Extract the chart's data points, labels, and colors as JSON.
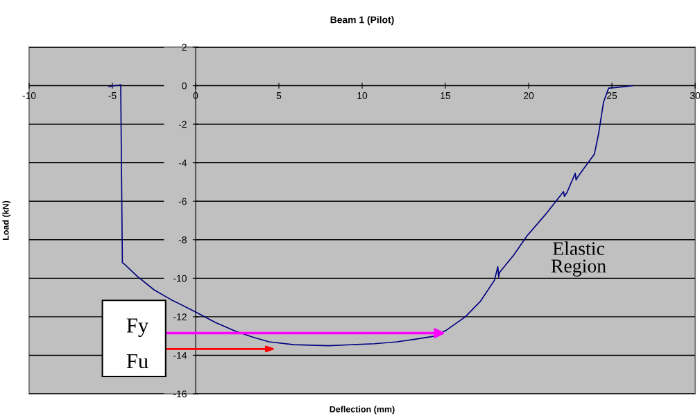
{
  "chart_data": {
    "type": "line",
    "title": "Beam 1 (Pilot)",
    "xlabel": "Deflection (mm)",
    "ylabel": "Load (kN)",
    "xlim": [
      -10,
      30
    ],
    "xticks": [
      -10,
      -5,
      0,
      5,
      10,
      15,
      20,
      25,
      30
    ],
    "ylim": [
      -16,
      2
    ],
    "yticks": [
      -16,
      -14,
      -12,
      -10,
      -8,
      -6,
      -4,
      -2,
      0,
      2
    ],
    "grid": "y",
    "legend": false,
    "marker": "none",
    "line_style": "solid",
    "series": [
      {
        "color": "#000080",
        "x": [
          -5.2,
          -4.9,
          -4.6,
          -4.5,
          -4.45,
          -4.4,
          -4.3,
          -3.5,
          -2.5,
          -1.5,
          0,
          1.2,
          2.4,
          3.4,
          4.4,
          5.9,
          8,
          10.75,
          12.1,
          13.3,
          14.4,
          15.05,
          16.2,
          17.1,
          17.95,
          18.15,
          18.2,
          18.25,
          19.1,
          19.9,
          21.0,
          22.1,
          22.15,
          22.3,
          22.8,
          22.85,
          22.9,
          23.4,
          23.95,
          24.2,
          24.5,
          24.8,
          25.2,
          25.75,
          26.25
        ],
        "values": [
          -0.05,
          0,
          0.03,
          0.05,
          -4.6,
          -9.2,
          -9.25,
          -9.9,
          -10.6,
          -11.1,
          -11.75,
          -12.3,
          -12.75,
          -13.05,
          -13.3,
          -13.45,
          -13.5,
          -13.4,
          -13.3,
          -13.15,
          -13.0,
          -12.7,
          -12.0,
          -11.2,
          -10.1,
          -9.4,
          -9.95,
          -9.7,
          -8.8,
          -7.8,
          -6.7,
          -5.5,
          -5.75,
          -5.55,
          -4.55,
          -4.9,
          -4.8,
          -4.2,
          -3.55,
          -2.5,
          -0.85,
          -0.13,
          -0.1,
          -0.05,
          0
        ]
      }
    ],
    "annotations": [
      {
        "text": "Fy",
        "x": 15,
        "y": -12.85
      },
      "Fu",
      "Elastic\nRegion"
    ]
  }
}
